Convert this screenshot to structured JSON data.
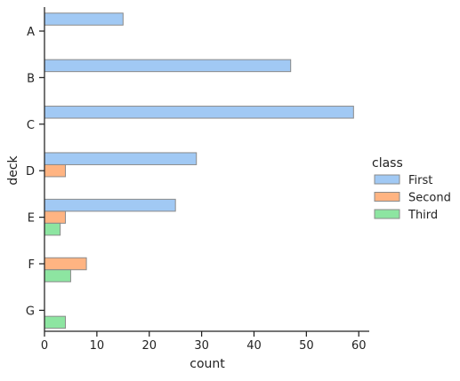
{
  "chart_data": {
    "type": "bar",
    "orientation": "horizontal",
    "title": "",
    "xlabel": "count",
    "ylabel": "deck",
    "categories": [
      "A",
      "B",
      "C",
      "D",
      "E",
      "F",
      "G"
    ],
    "xlim": [
      0,
      62
    ],
    "xticks": [
      0,
      10,
      20,
      30,
      40,
      50,
      60
    ],
    "grid": false,
    "legend": {
      "title": "class",
      "placement": "right"
    },
    "series": [
      {
        "name": "First",
        "color": "#a1c9f4",
        "values": [
          15,
          47,
          59,
          29,
          25,
          0,
          0
        ]
      },
      {
        "name": "Second",
        "color": "#ffb482",
        "values": [
          0,
          0,
          0,
          4,
          4,
          8,
          0
        ]
      },
      {
        "name": "Third",
        "color": "#8de5a1",
        "values": [
          0,
          0,
          0,
          0,
          3,
          5,
          4
        ]
      }
    ]
  }
}
